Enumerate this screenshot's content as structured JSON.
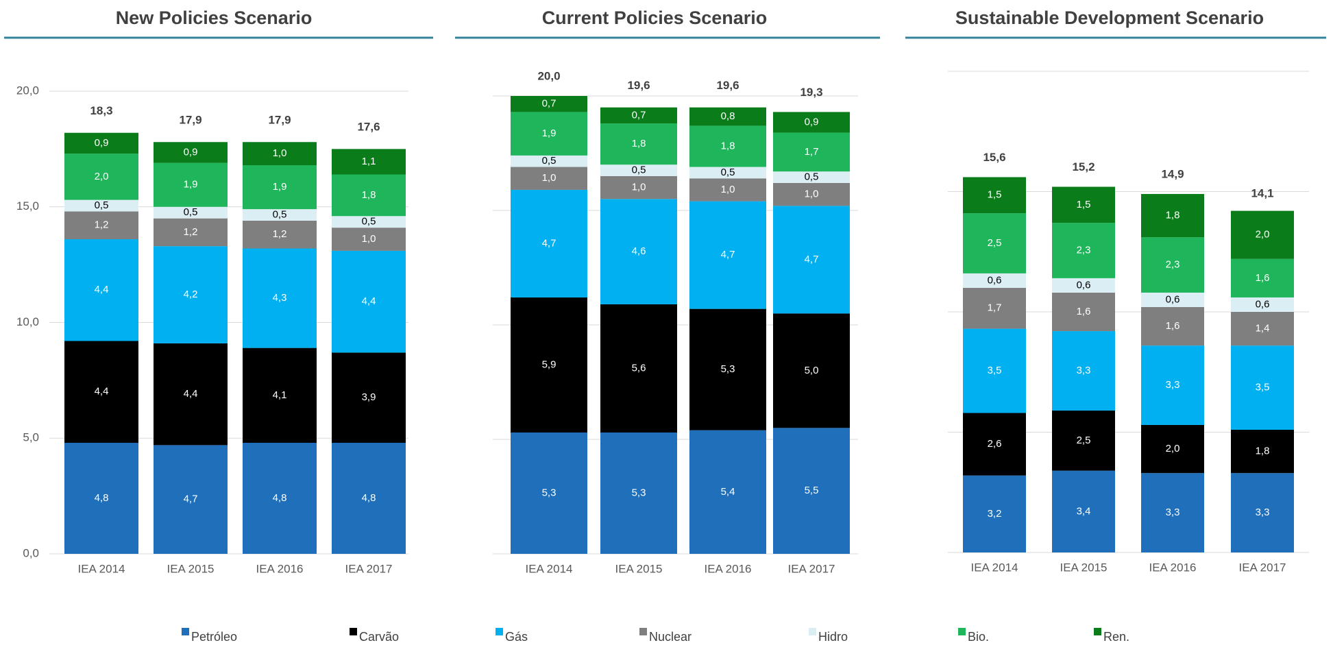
{
  "chart_data": [
    {
      "type": "bar",
      "stacked": true,
      "title": "New Policies Scenario",
      "categories": [
        "IEA 2014",
        "IEA 2015",
        "IEA 2016",
        "IEA 2017"
      ],
      "ylim": [
        0,
        20
      ],
      "yticks": [
        {
          "value": 0,
          "label": "0,0"
        },
        {
          "value": 5,
          "label": "5,0"
        },
        {
          "value": 10,
          "label": "10,0"
        },
        {
          "value": 15,
          "label": "15,0"
        },
        {
          "value": 20,
          "label": "20,0"
        }
      ],
      "grid": true,
      "totals": [
        18.3,
        17.9,
        17.9,
        17.6
      ],
      "total_labels": [
        "18,3",
        "17,9",
        "17,9",
        "17,6"
      ],
      "series": [
        {
          "name": "Petróleo",
          "color": "#1f6fbb",
          "values": [
            4.8,
            4.7,
            4.8,
            4.8
          ],
          "value_labels": [
            "4,8",
            "4,7",
            "4,8",
            "4,8"
          ]
        },
        {
          "name": "Carvão",
          "color": "#000000",
          "values": [
            4.4,
            4.4,
            4.1,
            3.9
          ],
          "value_labels": [
            "4,4",
            "4,4",
            "4,1",
            "3,9"
          ]
        },
        {
          "name": "Gás",
          "color": "#00b0f0",
          "values": [
            4.4,
            4.2,
            4.3,
            4.4
          ],
          "value_labels": [
            "4,4",
            "4,2",
            "4,3",
            "4,4"
          ]
        },
        {
          "name": "Nuclear",
          "color": "#7f7f7f",
          "values": [
            1.2,
            1.2,
            1.2,
            1.0
          ],
          "value_labels": [
            "1,2",
            "1,2",
            "1,2",
            "1,0"
          ]
        },
        {
          "name": "Hidro",
          "color": "#dbeef4",
          "values": [
            0.5,
            0.5,
            0.5,
            0.5
          ],
          "value_labels": [
            "0,5",
            "0,5",
            "0,5",
            "0,5"
          ]
        },
        {
          "name": "Bio.",
          "color": "#1fb55a",
          "values": [
            2.0,
            1.9,
            1.9,
            1.8
          ],
          "value_labels": [
            "2,0",
            "1,9",
            "1,9",
            "1,8"
          ]
        },
        {
          "name": "Ren.",
          "color": "#0a7d1a",
          "values": [
            0.9,
            0.9,
            1.0,
            1.1
          ],
          "value_labels": [
            "0,9",
            "0,9",
            "1,0",
            "1,1"
          ]
        }
      ]
    },
    {
      "type": "bar",
      "stacked": true,
      "title": "Current Policies Scenario",
      "categories": [
        "IEA 2014",
        "IEA 2015",
        "IEA 2016",
        "IEA 2017"
      ],
      "ylim": [
        0,
        20
      ],
      "yticks": [
        0,
        5,
        10,
        15,
        20
      ],
      "show_ytick_labels": false,
      "grid": true,
      "totals": [
        20.0,
        19.6,
        19.6,
        19.3
      ],
      "total_labels": [
        "20,0",
        "19,6",
        "19,6",
        "19,3"
      ],
      "series": [
        {
          "name": "Petróleo",
          "color": "#1f6fbb",
          "values": [
            5.3,
            5.3,
            5.4,
            5.5
          ],
          "value_labels": [
            "5,3",
            "5,3",
            "5,4",
            "5,5"
          ]
        },
        {
          "name": "Carvão",
          "color": "#000000",
          "values": [
            5.9,
            5.6,
            5.3,
            5.0
          ],
          "value_labels": [
            "5,9",
            "5,6",
            "5,3",
            "5,0"
          ]
        },
        {
          "name": "Gás",
          "color": "#00b0f0",
          "values": [
            4.7,
            4.6,
            4.7,
            4.7
          ],
          "value_labels": [
            "4,7",
            "4,6",
            "4,7",
            "4,7"
          ]
        },
        {
          "name": "Nuclear",
          "color": "#7f7f7f",
          "values": [
            1.0,
            1.0,
            1.0,
            1.0
          ],
          "value_labels": [
            "1,0",
            "1,0",
            "1,0",
            "1,0"
          ]
        },
        {
          "name": "Hidro",
          "color": "#dbeef4",
          "values": [
            0.5,
            0.5,
            0.5,
            0.5
          ],
          "value_labels": [
            "0,5",
            "0,5",
            "0,5",
            "0,5"
          ]
        },
        {
          "name": "Bio.",
          "color": "#1fb55a",
          "values": [
            1.9,
            1.8,
            1.8,
            1.7
          ],
          "value_labels": [
            "1,9",
            "1,8",
            "1,8",
            "1,7"
          ]
        },
        {
          "name": "Ren.",
          "color": "#0a7d1a",
          "values": [
            0.7,
            0.7,
            0.8,
            0.9
          ],
          "value_labels": [
            "0,7",
            "0,7",
            "0,8",
            "0,9"
          ]
        }
      ]
    },
    {
      "type": "bar",
      "stacked": true,
      "title": "Sustainable Development Scenario",
      "categories": [
        "IEA 2014",
        "IEA 2015",
        "IEA 2016",
        "IEA 2017"
      ],
      "ylim": [
        0,
        20
      ],
      "yticks": [
        0,
        5,
        10,
        15,
        20
      ],
      "show_ytick_labels": false,
      "grid": true,
      "totals": [
        15.6,
        15.2,
        14.9,
        14.1
      ],
      "total_labels": [
        "15,6",
        "15,2",
        "14,9",
        "14,1"
      ],
      "series": [
        {
          "name": "Petróleo",
          "color": "#1f6fbb",
          "values": [
            3.2,
            3.4,
            3.3,
            3.3
          ],
          "value_labels": [
            "3,2",
            "3,4",
            "3,3",
            "3,3"
          ]
        },
        {
          "name": "Carvão",
          "color": "#000000",
          "values": [
            2.6,
            2.5,
            2.0,
            1.8
          ],
          "value_labels": [
            "2,6",
            "2,5",
            "2,0",
            "1,8"
          ]
        },
        {
          "name": "Gás",
          "color": "#00b0f0",
          "values": [
            3.5,
            3.3,
            3.3,
            3.5
          ],
          "value_labels": [
            "3,5",
            "3,3",
            "3,3",
            "3,5"
          ]
        },
        {
          "name": "Nuclear",
          "color": "#7f7f7f",
          "values": [
            1.7,
            1.6,
            1.6,
            1.4
          ],
          "value_labels": [
            "1,7",
            "1,6",
            "1,6",
            "1,4"
          ]
        },
        {
          "name": "Hidro",
          "color": "#dbeef4",
          "values": [
            0.6,
            0.6,
            0.6,
            0.6
          ],
          "value_labels": [
            "0,6",
            "0,6",
            "0,6",
            "0,6"
          ]
        },
        {
          "name": "Bio.",
          "color": "#1fb55a",
          "values": [
            2.5,
            2.3,
            2.3,
            1.6
          ],
          "value_labels": [
            "2,5",
            "2,3",
            "2,3",
            "1,6"
          ]
        },
        {
          "name": "Ren.",
          "color": "#0a7d1a",
          "values": [
            1.5,
            1.5,
            1.8,
            2.0
          ],
          "value_labels": [
            "1,5",
            "1,5",
            "1,8",
            "2,0"
          ]
        }
      ]
    }
  ]
}
